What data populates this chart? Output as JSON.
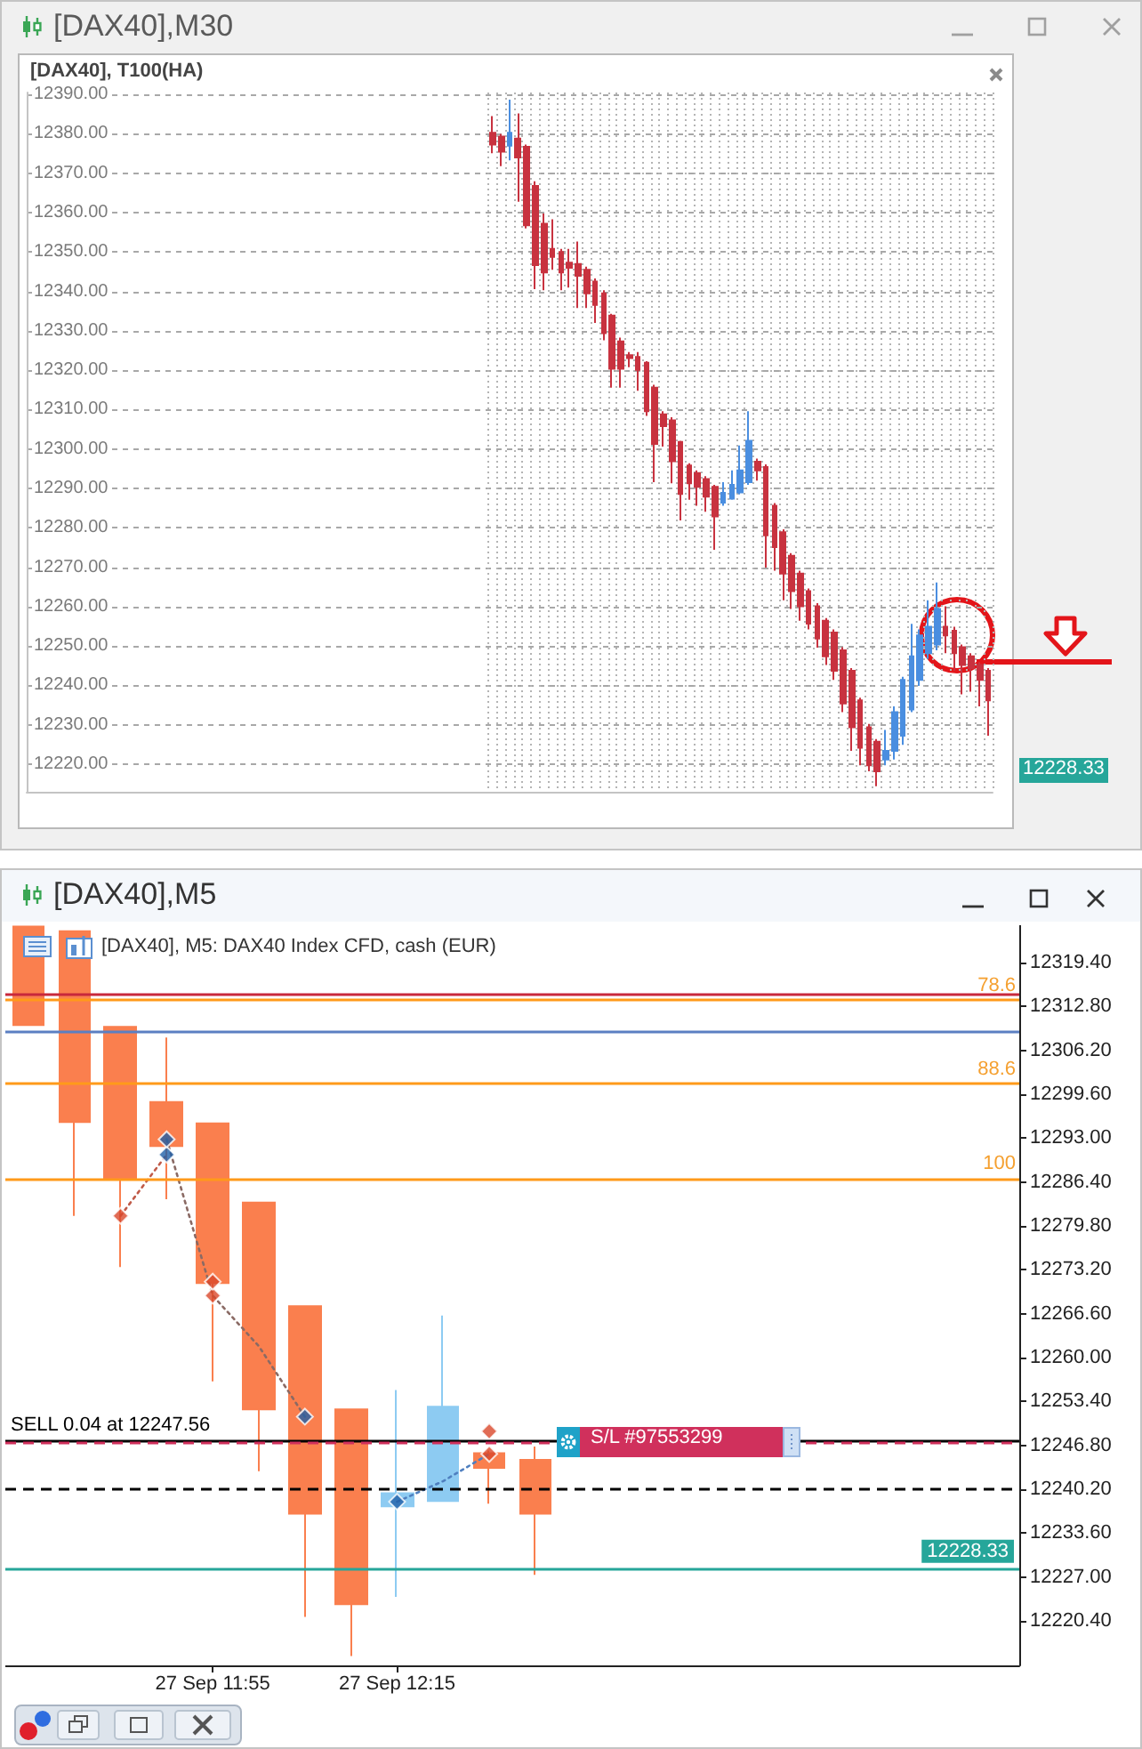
{
  "chart_data": [
    {
      "type": "candlestick",
      "title": "[DAX40],M30",
      "subtitle": "[DAX40], T100(HA)",
      "categories": [
        null,
        null,
        null,
        null,
        null,
        null,
        null,
        null,
        null,
        null,
        null,
        null,
        null,
        null,
        null,
        null,
        null,
        null,
        null,
        null,
        null,
        null,
        null,
        null,
        null,
        null,
        null,
        null,
        null,
        null,
        null,
        null,
        null,
        null,
        null,
        null,
        null,
        null,
        null,
        null,
        null,
        null,
        null,
        null,
        null,
        null,
        null,
        null,
        null,
        null,
        null,
        null,
        null,
        null,
        null,
        null,
        null,
        null,
        null,
        null,
        null,
        null,
        null,
        null,
        null,
        null,
        null,
        null,
        null,
        null,
        null,
        null,
        null,
        null,
        null,
        null,
        null,
        null,
        null,
        null,
        null,
        null,
        null,
        null,
        null,
        null,
        null,
        null,
        null,
        null,
        null,
        null,
        null,
        null,
        null,
        null,
        null,
        null,
        null,
        null,
        null,
        null,
        null,
        null,
        null,
        null,
        null,
        null,
        null,
        null,
        null,
        null,
        null
      ],
      "ohlc": [
        null,
        null,
        null,
        null,
        null,
        null,
        null,
        null,
        null,
        null,
        null,
        null,
        null,
        null,
        null,
        null,
        null,
        null,
        null,
        null,
        null,
        null,
        null,
        null,
        null,
        null,
        null,
        null,
        null,
        null,
        null,
        null,
        null,
        null,
        null,
        null,
        null,
        null,
        null,
        null,
        null,
        null,
        null,
        null,
        null,
        null,
        null,
        null,
        null,
        null,
        null,
        null,
        null,
        null,
        [
          12380.3,
          12384.5,
          12375.1,
          12377.3
        ],
        [
          12379.3,
          12380.0,
          12371.8,
          12375.5
        ],
        [
          12377.0,
          12388.7,
          12373.3,
          12380.3
        ],
        [
          12378.8,
          12385.2,
          12362.8,
          12374.0
        ],
        [
          12376.7,
          12377.3,
          12356.0,
          12356.8
        ],
        [
          12366.8,
          12368.0,
          12340.6,
          12346.7
        ],
        [
          12357.2,
          12359.8,
          12340.3,
          12344.8
        ],
        [
          12350.8,
          12358.3,
          12345.5,
          12348.8
        ],
        [
          12350.0,
          12350.8,
          12340.3,
          12344.8
        ],
        [
          12347.3,
          12350.8,
          12341.0,
          12346.0
        ],
        [
          12347.0,
          12352.7,
          12335.8,
          12344.0
        ],
        [
          12345.5,
          12346.3,
          12335.8,
          12339.5
        ],
        [
          12342.5,
          12343.3,
          12332.0,
          12336.6
        ],
        [
          12339.5,
          12340.3,
          12327.6,
          12329.4
        ],
        [
          12333.9,
          12334.3,
          12315.6,
          12320.4
        ],
        [
          12327.3,
          12328.3,
          12315.6,
          12320.4
        ],
        [
          12323.8,
          12324.6,
          12320.8,
          12323.1
        ],
        [
          12323.4,
          12324.6,
          12314.8,
          12320.1
        ],
        [
          12321.9,
          12322.3,
          12308.4,
          12309.6
        ],
        [
          12315.6,
          12316.3,
          12291.6,
          12301.3
        ],
        [
          12308.8,
          12309.6,
          12300.6,
          12305.8
        ],
        [
          12307.3,
          12308.1,
          12291.3,
          12296.9
        ],
        [
          12301.8,
          12302.1,
          12281.9,
          12288.6
        ],
        [
          12295.8,
          12296.4,
          12287.1,
          12291.3
        ],
        [
          12293.9,
          12294.6,
          12285.6,
          12290.4
        ],
        [
          12292.4,
          12293.1,
          12284.1,
          12287.9
        ],
        [
          12290.4,
          12290.9,
          12274.4,
          12282.9
        ],
        [
          12286.4,
          12291.6,
          12285.6,
          12288.9
        ],
        [
          12287.4,
          12294.6,
          12287.1,
          12290.9
        ],
        [
          12289.0,
          12300.9,
          12288.5,
          12294.6
        ],
        [
          12291.6,
          12309.6,
          12290.9,
          12302.1
        ],
        [
          12296.8,
          12297.6,
          12292.0,
          12294.6
        ],
        [
          12295.4,
          12296.1,
          12269.9,
          12278.1
        ],
        [
          12285.6,
          12286.3,
          12269.1,
          12275.1
        ],
        [
          12278.9,
          12279.6,
          12261.6,
          12268.4
        ],
        [
          12272.9,
          12273.6,
          12259.4,
          12263.9
        ],
        [
          12268.4,
          12269.1,
          12256.4,
          12260.1
        ],
        [
          12263.9,
          12264.6,
          12254.2,
          12255.7
        ],
        [
          12260.1,
          12260.9,
          12249.6,
          12251.9
        ],
        [
          12256.4,
          12257.1,
          12245.2,
          12247.4
        ],
        [
          12253.4,
          12254.2,
          12241.4,
          12243.7
        ],
        [
          12248.9,
          12249.7,
          12233.2,
          12235.4
        ],
        [
          12243.7,
          12244.4,
          12223.4,
          12229.4
        ],
        [
          12236.2,
          12236.9,
          12219.7,
          12224.2
        ],
        [
          12229.4,
          12230.2,
          12218.2,
          12219.7
        ],
        [
          12225.7,
          12226.4,
          12214.4,
          12218.2
        ],
        [
          12221.2,
          12228.7,
          12219.7,
          12223.4
        ],
        [
          12223.4,
          12234.7,
          12221.2,
          12233.2
        ],
        [
          12227.2,
          12242.2,
          12224.9,
          12241.4
        ],
        [
          12233.9,
          12255.6,
          12233.2,
          12247.4
        ],
        [
          12241.4,
          12254.2,
          12239.9,
          12252.7
        ],
        [
          12248.2,
          12261.6,
          12246.7,
          12254.9
        ],
        [
          12250.4,
          12266.1,
          12248.9,
          12259.4
        ],
        [
          12254.9,
          12260.1,
          12248.2,
          12252.7
        ],
        [
          12253.9,
          12254.9,
          12243.7,
          12248.2
        ],
        [
          12249.7,
          12250.4,
          12237.7,
          12245.2
        ],
        [
          12247.4,
          12248.2,
          12238.4,
          12244.4
        ],
        [
          12245.2,
          12245.9,
          12234.7,
          12241.4
        ],
        [
          12243.7,
          12244.4,
          12227.2,
          12236.2
        ]
      ],
      "colors": [
        null,
        null,
        null,
        null,
        null,
        null,
        null,
        null,
        null,
        null,
        null,
        null,
        null,
        null,
        null,
        null,
        null,
        null,
        null,
        null,
        null,
        null,
        null,
        null,
        null,
        null,
        null,
        null,
        null,
        null,
        null,
        null,
        null,
        null,
        null,
        null,
        null,
        null,
        null,
        null,
        null,
        null,
        null,
        null,
        null,
        null,
        null,
        null,
        null,
        null,
        null,
        null,
        null,
        null,
        "#c8323f",
        "#c8323f",
        "#4a8ee0",
        "#c8323f",
        "#c8323f",
        "#c8323f",
        "#c8323f",
        "#c8323f",
        "#c8323f",
        "#c8323f",
        "#c8323f",
        "#c8323f",
        "#c8323f",
        "#c8323f",
        "#c8323f",
        "#c8323f",
        "#c8323f",
        "#c8323f",
        "#c8323f",
        "#c8323f",
        "#c8323f",
        "#c8323f",
        "#c8323f",
        "#c8323f",
        "#c8323f",
        "#c8323f",
        "#c8323f",
        "#4a8ee0",
        "#4a8ee0",
        "#4a8ee0",
        "#4a8ee0",
        "#c8323f",
        "#c8323f",
        "#c8323f",
        "#c8323f",
        "#c8323f",
        "#c8323f",
        "#c8323f",
        "#c8323f",
        "#c8323f",
        "#c8323f",
        "#c8323f",
        "#c8323f",
        "#c8323f",
        "#c8323f",
        "#c8323f",
        "#4a8ee0",
        "#4a8ee0",
        "#4a8ee0",
        "#4a8ee0",
        "#4a8ee0",
        "#4a8ee0",
        "#4a8ee0",
        "#c8323f",
        "#c8323f",
        "#c8323f",
        "#c8323f",
        "#c8323f",
        "#c8323f"
      ],
      "ylim": [
        12213,
        12390.5
      ],
      "yticks": [
        {
          "value": 12220,
          "label": "12220.00"
        },
        {
          "value": 12230,
          "label": "12230.00"
        },
        {
          "value": 12240,
          "label": "12240.00"
        },
        {
          "value": 12250,
          "label": "12250.00"
        },
        {
          "value": 12260,
          "label": "12260.00"
        },
        {
          "value": 12270,
          "label": "12270.00"
        },
        {
          "value": 12280,
          "label": "12280.00"
        },
        {
          "value": 12290,
          "label": "12290.00"
        },
        {
          "value": 12300,
          "label": "12300.00"
        },
        {
          "value": 12310,
          "label": "12310.00"
        },
        {
          "value": 12320,
          "label": "12320.00"
        },
        {
          "value": 12330,
          "label": "12330.00"
        },
        {
          "value": 12340,
          "label": "12340.00"
        },
        {
          "value": 12350,
          "label": "12350.00"
        },
        {
          "value": 12360,
          "label": "12360.00"
        },
        {
          "value": 12370,
          "label": "12370.00"
        },
        {
          "value": 12380,
          "label": "12380.00"
        },
        {
          "value": 12390,
          "label": "12390.00"
        }
      ],
      "grid": true,
      "tick_labels": "y",
      "annotations": [
        "12228.33"
      ]
    },
    {
      "type": "candlestick",
      "title": "[DAX40],M5",
      "subtitle": "[DAX40], M5: DAX40 Index CFD, cash (EUR)",
      "categories": [
        null,
        null,
        null,
        null,
        "27 Sep 11:55",
        null,
        null,
        null,
        "27 Sep 12:15",
        null,
        null,
        null,
        null,
        null,
        null,
        null,
        null,
        null,
        null,
        null,
        null,
        null
      ],
      "ohlc": [
        [
          12324.8,
          12324.8,
          12310.0,
          12310.0
        ],
        [
          12324.1,
          12324.1,
          12281.3,
          12295.4
        ],
        [
          12309.7,
          12309.7,
          12273.6,
          12286.9
        ],
        [
          12298.4,
          12308.1,
          12283.8,
          12291.8
        ],
        [
          12295.2,
          12295.2,
          12256.4,
          12271.2
        ],
        [
          12283.3,
          12283.3,
          12242.9,
          12252.2
        ],
        [
          12267.7,
          12267.7,
          12221.0,
          12236.5
        ],
        [
          12252.2,
          12252.2,
          12215.1,
          12222.9
        ],
        [
          12237.6,
          12255.1,
          12224.0,
          12239.6
        ],
        [
          12238.4,
          12266.3,
          12238.4,
          12252.6
        ],
        [
          12245.6,
          12246.0,
          12238.0,
          12243.4
        ],
        [
          12244.6,
          12246.6,
          12227.3,
          12236.5
        ],
        null,
        null,
        null,
        null,
        null,
        null,
        null,
        null,
        null,
        null
      ],
      "colors": [
        "#fa7f4e",
        "#fa7f4e",
        "#fa7f4e",
        "#fa7f4e",
        "#fa7f4e",
        "#fa7f4e",
        "#fa7f4e",
        "#fa7f4e",
        "#8dcbf2",
        "#8dcbf2",
        "#fa7f4e",
        "#fa7f4e",
        null,
        null,
        null,
        null,
        null,
        null,
        null,
        null,
        null,
        null
      ],
      "series": [
        {
          "type": "line",
          "values": [
            null,
            null,
            12281.3,
            12290.5,
            null,
            null,
            null,
            null,
            null,
            null,
            null,
            null,
            null,
            null,
            null,
            null,
            null,
            null,
            null,
            null,
            null,
            null
          ],
          "color": "#c05a48",
          "line_style": "dotted"
        },
        {
          "type": "line",
          "values": [
            null,
            null,
            null,
            12292.8,
            12269.3,
            12261.7,
            12251.1,
            null,
            null,
            null,
            null,
            null,
            null,
            null,
            null,
            null,
            null,
            null,
            null,
            null,
            null,
            null
          ],
          "color": "#8a6a64",
          "line_style": "dotted"
        },
        {
          "type": "line",
          "values": [
            null,
            null,
            null,
            null,
            null,
            null,
            null,
            null,
            12238.3,
            12241.4,
            12245.5,
            null,
            null,
            null,
            null,
            null,
            null,
            null,
            null,
            null,
            null,
            null
          ],
          "color": "#4f7fbf",
          "line_style": "dotted"
        },
        {
          "type": "scatter",
          "values": [
            null,
            null,
            null,
            12290.5,
            null,
            null,
            12251.1,
            null,
            12238.3,
            null,
            null,
            null,
            null,
            null,
            null,
            null,
            null,
            null,
            null,
            null,
            null,
            null
          ],
          "color": "#1f5fa8",
          "marker": "diamond"
        },
        {
          "type": "scatter",
          "values": [
            null,
            null,
            null,
            12292.8,
            null,
            null,
            null,
            null,
            null,
            null,
            null,
            null,
            null,
            null,
            null,
            null,
            null,
            null,
            null,
            null,
            null,
            null
          ],
          "color": "#1f5fa8",
          "marker": "diamond"
        },
        {
          "type": "scatter",
          "values": [
            null,
            null,
            12281.3,
            null,
            12269.3,
            null,
            null,
            null,
            null,
            null,
            12245.5,
            null,
            null,
            null,
            null,
            null,
            null,
            null,
            null,
            null,
            null,
            null
          ],
          "color": "#d9472b",
          "marker": "diamond"
        },
        {
          "type": "scatter",
          "values": [
            null,
            null,
            null,
            null,
            12271.4,
            null,
            null,
            null,
            null,
            null,
            12248.9,
            null,
            null,
            null,
            null,
            null,
            null,
            null,
            null,
            null,
            null,
            null
          ],
          "color": "#d9472b",
          "marker": "diamond"
        }
      ],
      "ylim": [
        12213.7,
        12325
      ],
      "yticks": [
        {
          "value": 12220.4,
          "label": "12220.40"
        },
        {
          "value": 12227,
          "label": "12227.00"
        },
        {
          "value": 12233.6,
          "label": "12233.60"
        },
        {
          "value": 12240.2,
          "label": "12240.20"
        },
        {
          "value": 12246.8,
          "label": "12246.80"
        },
        {
          "value": 12253.4,
          "label": "12253.40"
        },
        {
          "value": 12260,
          "label": "12260.00"
        },
        {
          "value": 12266.6,
          "label": "12266.60"
        },
        {
          "value": 12273.2,
          "label": "12273.20"
        },
        {
          "value": 12279.8,
          "label": "12279.80"
        },
        {
          "value": 12286.4,
          "label": "12286.40"
        },
        {
          "value": 12293,
          "label": "12293.00"
        },
        {
          "value": 12299.6,
          "label": "12299.60"
        },
        {
          "value": 12306.2,
          "label": "12306.20"
        },
        {
          "value": 12312.8,
          "label": "12312.80"
        },
        {
          "value": 12319.4,
          "label": "12319.40"
        }
      ],
      "ref_lines": [
        {
          "axis": "y",
          "value": 12314.7,
          "color": "#c8283c"
        },
        {
          "axis": "y",
          "value": 12313.8,
          "color": "#ff9a1a"
        },
        {
          "axis": "y",
          "value": 12309.1,
          "color": "#5b7fc2"
        },
        {
          "axis": "y",
          "value": 12301.2,
          "color": "#ff9a1a"
        },
        {
          "axis": "y",
          "value": 12286.9,
          "color": "#ff9a1a"
        },
        {
          "axis": "y",
          "value": 12247.56,
          "label": "SELL 0.04 at 12247.56",
          "color": "#000000"
        },
        {
          "axis": "y",
          "value": 12247.2,
          "label": "S/L #97553299",
          "color": "#d0305c",
          "line_style": "dashed"
        },
        {
          "axis": "y",
          "value": 12240.3,
          "color": "#000000",
          "line_style": "dashed"
        },
        {
          "axis": "y",
          "value": 12228.33,
          "label": "12228.33",
          "color": "#26a69a"
        }
      ],
      "annotations": [
        {
          "text": "78.6",
          "y": 12313.8
        },
        {
          "text": "88.6",
          "y": 12301.2
        },
        {
          "text": "100",
          "y": 12286.9
        }
      ]
    }
  ]
}
